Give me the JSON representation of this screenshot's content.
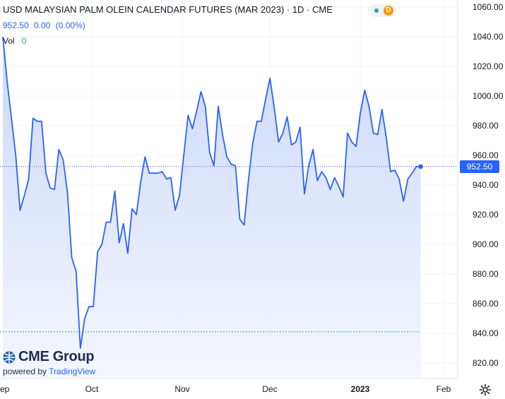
{
  "header": {
    "title": "USD MALAYSIAN PALM OLEIN CALENDAR FUTURES (MAR 2023) · 1D · CME",
    "last": "952.50",
    "change": "0.00",
    "change_pct": "(0.00%)",
    "vol_label": "Vol",
    "vol_value": "0"
  },
  "status": {
    "badge": "D"
  },
  "logo": {
    "brand": "CME Group",
    "powered_prefix": "powered by",
    "powered_brand": "TradingView"
  },
  "colors": {
    "line": "#2962ff",
    "area_top": "#c9d6fb",
    "area_bottom": "#f3f6fe",
    "grid": "#f0f3fa",
    "text": "#131722",
    "axis_text": "#131722",
    "ref_green": "#26a69a"
  },
  "chart_data": {
    "type": "area",
    "y_ticks": [
      820,
      840,
      860,
      880,
      900,
      920,
      940,
      960,
      980,
      1000,
      1020,
      1040,
      1060
    ],
    "x_labels": [
      "ep",
      "Oct",
      "Nov",
      "Dec",
      "2023",
      "Feb"
    ],
    "ylim": [
      814,
      1063
    ],
    "last_price": 952.5,
    "last_price_label": "952.50",
    "reference_level": 841,
    "series": [
      {
        "values": [
          1040,
          1010,
          985,
          960,
          923,
          933,
          944,
          985,
          983,
          983,
          948,
          938,
          937,
          964,
          957,
          935,
          891,
          882,
          830,
          850,
          858,
          858,
          895,
          900,
          915,
          915,
          936,
          901,
          914,
          894,
          924,
          920,
          942,
          959,
          948,
          948,
          948,
          949,
          944,
          945,
          923,
          933,
          960,
          987,
          978,
          990,
          1003,
          993,
          962,
          953,
          993,
          974,
          959,
          954,
          953,
          917,
          913,
          943,
          968,
          983,
          983,
          998,
          1012,
          992,
          969,
          975,
          986,
          967,
          969,
          979,
          934,
          953,
          964,
          943,
          949,
          945,
          937,
          945,
          939,
          932,
          975,
          969,
          966,
          989,
          1004,
          993,
          975,
          974,
          991,
          972,
          949,
          950,
          944,
          929,
          944,
          948,
          952.5,
          952.5
        ]
      }
    ]
  }
}
